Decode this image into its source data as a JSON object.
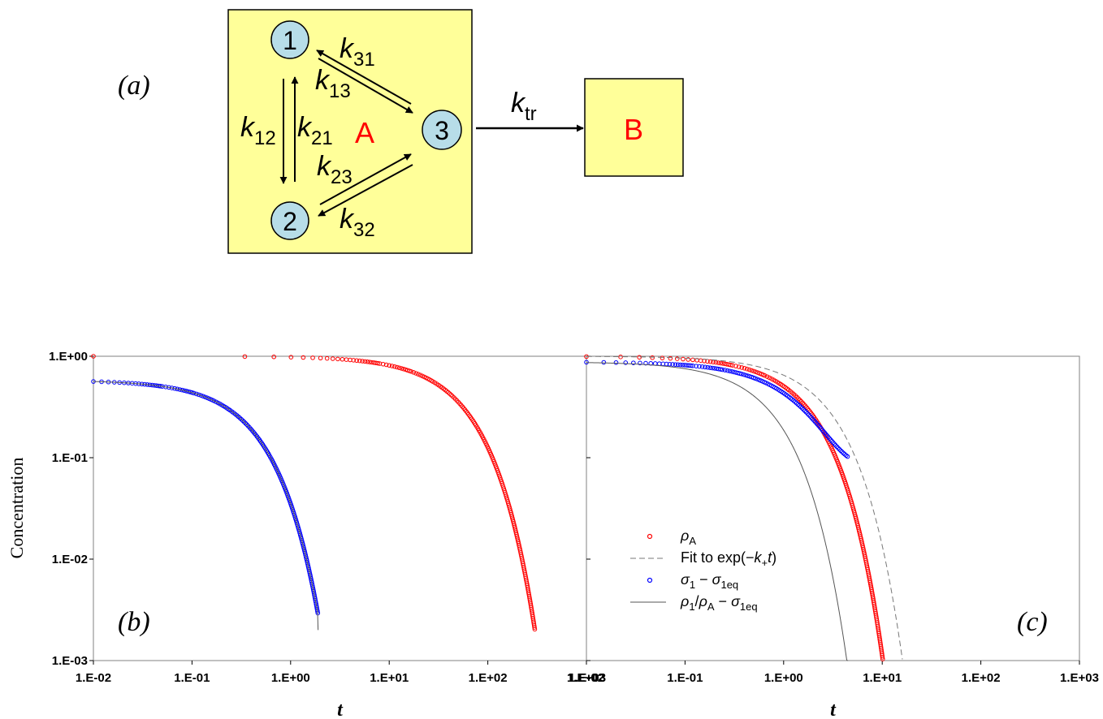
{
  "diagram": {
    "panel_label": "(a)",
    "compartment_A": {
      "label": "A",
      "states": [
        "1",
        "2",
        "3"
      ],
      "rates": [
        {
          "base": "k",
          "sub": "31"
        },
        {
          "base": "k",
          "sub": "13"
        },
        {
          "base": "k",
          "sub": "12"
        },
        {
          "base": "k",
          "sub": "21"
        },
        {
          "base": "k",
          "sub": "23"
        },
        {
          "base": "k",
          "sub": "32"
        }
      ]
    },
    "transfer_rate": {
      "base": "k",
      "sub": "tr"
    },
    "compartment_B": {
      "label": "B"
    },
    "colors": {
      "box_fill": "#ffff99",
      "state_fill": "#b7dde8",
      "compartment_label": "#ff0000"
    }
  },
  "chart_data": [
    {
      "type": "scatter",
      "panel_label": "(b)",
      "xlabel": "t",
      "ylabel": "Concentration",
      "xscale": "log",
      "yscale": "log",
      "xlim": [
        0.01,
        1000
      ],
      "ylim": [
        0.001,
        1
      ],
      "x_ticks": [
        "1.E-02",
        "1.E-01",
        "1.E+00",
        "1.E+01",
        "1.E+02",
        "1.E+03"
      ],
      "y_ticks": [
        "1.E-03",
        "1.E-02",
        "1.E-01",
        "1.E+00"
      ],
      "grid": false,
      "legend": "none",
      "series": [
        {
          "marker": "open-circle",
          "color": "#ff0000",
          "decay_rate": 0.0207,
          "x_range": [
            0.01,
            300
          ]
        },
        {
          "marker": "open-circle",
          "color": "#0000ff",
          "amplitude": 0.58,
          "decay_rate": 2.8,
          "x_range": [
            0.01,
            1.9
          ]
        },
        {
          "marker": "none",
          "line": "solid",
          "color": "#555555",
          "amplitude": 0.58,
          "decay_rate": 2.8,
          "x_range": [
            0.01,
            1.9
          ],
          "end_value": 0.002
        }
      ]
    },
    {
      "type": "scatter",
      "panel_label": "(c)",
      "xlabel": "t",
      "xscale": "log",
      "yscale": "log",
      "xlim": [
        0.01,
        1000
      ],
      "ylim": [
        0.001,
        1
      ],
      "x_ticks": [
        "1.E-02",
        "1.E-01",
        "1.E+00",
        "1.E+01",
        "1.E+02",
        "1.E+03"
      ],
      "x_ticks_overlap_label": "1.E+03",
      "grid": false,
      "legend": "bottom-left",
      "series": [
        {
          "name_parts": [
            {
              "t": "ρ",
              "i": true
            },
            {
              "t": "A",
              "sub": true
            }
          ],
          "marker": "open-circle",
          "color": "#ff0000",
          "decay_rate": 0.68,
          "x_range": [
            0.01,
            11
          ]
        },
        {
          "name_parts": [
            {
              "t": "Fit to exp(−"
            },
            {
              "t": "k",
              "i": true
            },
            {
              "t": "+",
              "sub": true
            },
            {
              "t": "t",
              "i": true
            },
            {
              "t": ")"
            }
          ],
          "marker": "none",
          "line": "dashed",
          "color": "#777777",
          "decay_rate": 0.43,
          "x_range": [
            0.01,
            16
          ]
        },
        {
          "name_parts": [
            {
              "t": "σ",
              "i": true
            },
            {
              "t": "1",
              "sub": true
            },
            {
              "t": " − "
            },
            {
              "t": "σ",
              "i": true
            },
            {
              "t": "1eq",
              "sub": true
            }
          ],
          "marker": "open-circle",
          "color": "#0000ff",
          "amplitude": 0.88,
          "decay_rate": 0.82,
          "floor": 0.093,
          "x_range": [
            0.01,
            4.5
          ]
        },
        {
          "name_parts": [
            {
              "t": "ρ",
              "i": true
            },
            {
              "t": "1",
              "sub": true
            },
            {
              "t": "/"
            },
            {
              "t": "ρ",
              "i": true
            },
            {
              "t": "A",
              "sub": true
            },
            {
              "t": " − "
            },
            {
              "t": "σ",
              "i": true
            },
            {
              "t": "1eq",
              "sub": true
            }
          ],
          "marker": "none",
          "line": "solid",
          "color": "#555555",
          "amplitude": 0.88,
          "decay_rate": 1.55,
          "x_range": [
            0.01,
            4.5
          ]
        }
      ]
    }
  ]
}
